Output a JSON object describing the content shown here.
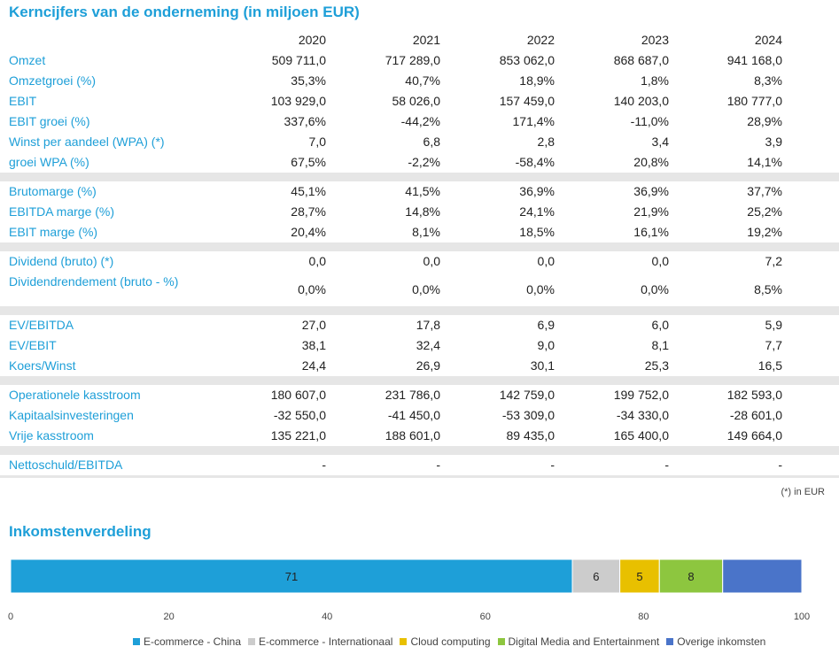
{
  "title": "Kerncijfers van de onderneming (in miljoen EUR)",
  "years": [
    "2020",
    "2021",
    "2022",
    "2023",
    "2024"
  ],
  "groups": [
    [
      {
        "label": "Omzet",
        "values": [
          "509 711,0",
          "717 289,0",
          "853 062,0",
          "868 687,0",
          "941 168,0"
        ]
      },
      {
        "label": "Omzetgroei (%)",
        "values": [
          "35,3%",
          "40,7%",
          "18,9%",
          "1,8%",
          "8,3%"
        ]
      },
      {
        "label": "EBIT",
        "values": [
          "103 929,0",
          "58 026,0",
          "157 459,0",
          "140 203,0",
          "180 777,0"
        ]
      },
      {
        "label": "EBIT groei (%)",
        "values": [
          "337,6%",
          "-44,2%",
          "171,4%",
          "-11,0%",
          "28,9%"
        ]
      },
      {
        "label": "Winst per aandeel (WPA) (*)",
        "values": [
          "7,0",
          "6,8",
          "2,8",
          "3,4",
          "3,9"
        ]
      },
      {
        "label": "groei WPA (%)",
        "values": [
          "67,5%",
          "-2,2%",
          "-58,4%",
          "20,8%",
          "14,1%"
        ]
      }
    ],
    [
      {
        "label": "Brutomarge (%)",
        "values": [
          "45,1%",
          "41,5%",
          "36,9%",
          "36,9%",
          "37,7%"
        ]
      },
      {
        "label": "EBITDA marge (%)",
        "values": [
          "28,7%",
          "14,8%",
          "24,1%",
          "21,9%",
          "25,2%"
        ]
      },
      {
        "label": "EBIT marge (%)",
        "values": [
          "20,4%",
          "8,1%",
          "18,5%",
          "16,1%",
          "19,2%"
        ]
      }
    ],
    [
      {
        "label": "Dividend (bruto) (*)",
        "values": [
          "0,0",
          "0,0",
          "0,0",
          "0,0",
          "7,2"
        ]
      },
      {
        "label": "Dividendrendement (bruto - %)",
        "values": [
          "0,0%",
          "0,0%",
          "0,0%",
          "0,0%",
          "8,5%"
        ],
        "tall": true
      }
    ],
    [
      {
        "label": "EV/EBITDA",
        "values": [
          "27,0",
          "17,8",
          "6,9",
          "6,0",
          "5,9"
        ]
      },
      {
        "label": "EV/EBIT",
        "values": [
          "38,1",
          "32,4",
          "9,0",
          "8,1",
          "7,7"
        ]
      },
      {
        "label": "Koers/Winst",
        "values": [
          "24,4",
          "26,9",
          "30,1",
          "25,3",
          "16,5"
        ]
      }
    ],
    [
      {
        "label": "Operationele kasstroom",
        "values": [
          "180 607,0",
          "231 786,0",
          "142 759,0",
          "199 752,0",
          "182 593,0"
        ]
      },
      {
        "label": "Kapitaalsinvesteringen",
        "values": [
          "-32 550,0",
          "-41 450,0",
          "-53 309,0",
          "-34 330,0",
          "-28 601,0"
        ]
      },
      {
        "label": "Vrije kasstroom",
        "values": [
          "135 221,0",
          "188 601,0",
          "89 435,0",
          "165 400,0",
          "149 664,0"
        ]
      }
    ],
    [
      {
        "label": "Nettoschuld/EBITDA",
        "values": [
          "-",
          "-",
          "-",
          "-",
          "-"
        ]
      }
    ]
  ],
  "footnote": "(*) in EUR",
  "subtitle": "Inkomstenverdeling",
  "chart_data": {
    "type": "bar",
    "orientation": "horizontal-stacked",
    "xlim": [
      0,
      100
    ],
    "xticks": [
      "0",
      "20",
      "40",
      "60",
      "80",
      "100"
    ],
    "series": [
      {
        "name": "E-commerce - China",
        "value": 71,
        "label": "71",
        "color": "#1e9fd8"
      },
      {
        "name": "E-commerce - Internationaal",
        "value": 6,
        "label": "6",
        "color": "#cccccc"
      },
      {
        "name": "Cloud computing",
        "value": 5,
        "label": "5",
        "color": "#e8c000"
      },
      {
        "name": "Digital Media and Entertainment",
        "value": 8,
        "label": "8",
        "color": "#8dc63f"
      },
      {
        "name": "Overige inkomsten",
        "value": 10.5,
        "label": "",
        "color": "#4a74c9"
      }
    ]
  }
}
